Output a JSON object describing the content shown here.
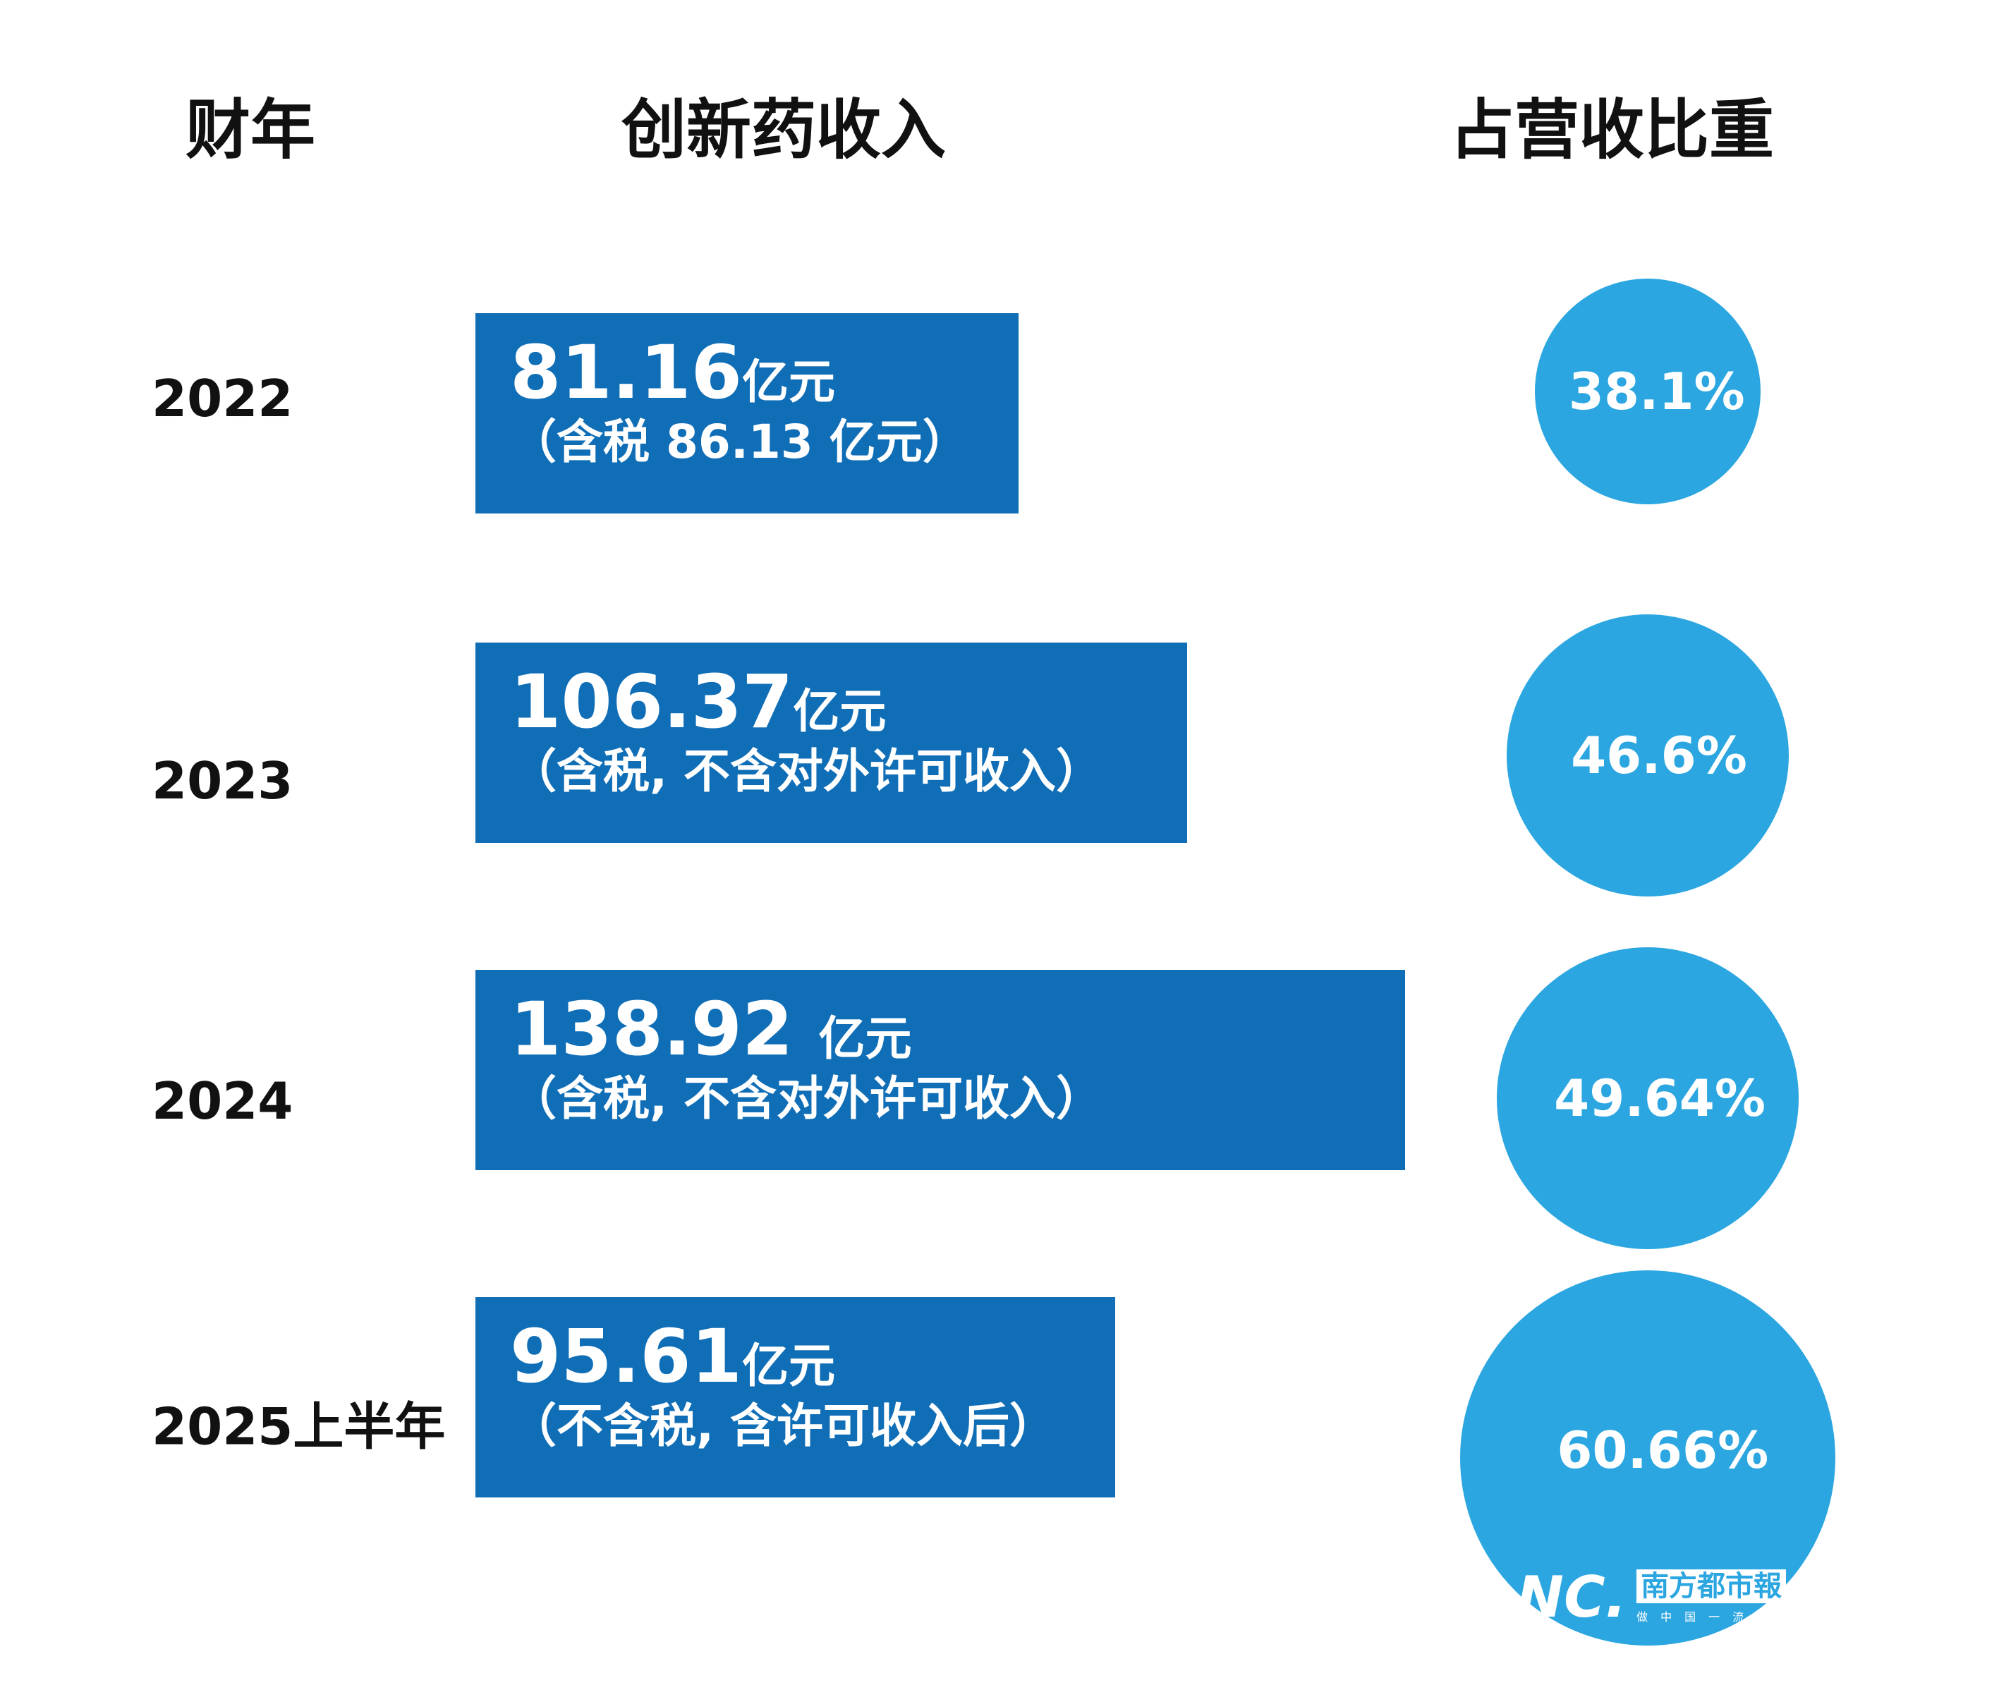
{
  "headers": {
    "year": "财年",
    "revenue": "创新药收入",
    "share": "占营收比重"
  },
  "colors": {
    "bar": "#106EB7",
    "circle": "#2CA6E0"
  },
  "chart_data": {
    "type": "bar",
    "categories": [
      "2022",
      "2023",
      "2024",
      "2025上半年"
    ],
    "series": [
      {
        "name": "创新药收入",
        "values": [
          81.16,
          106.37,
          138.92,
          95.61
        ],
        "unit": "亿元"
      },
      {
        "name": "占营收比重",
        "values": [
          38.1,
          46.6,
          49.64,
          60.66
        ],
        "unit": "%"
      }
    ]
  },
  "rows": [
    {
      "year": "2022",
      "amount": "81.16",
      "unit": "亿元",
      "note": "（含税 86.13 亿元）",
      "share": "38.1%"
    },
    {
      "year": "2023",
      "amount": "106.37",
      "unit": "亿元",
      "note": "（含税, 不含对外许可收入）",
      "share": "46.6%"
    },
    {
      "year": "2024",
      "amount": "138.92 ",
      "unit": "亿元",
      "note": "（含税, 不含对外许可收入）",
      "share": "49.64%"
    },
    {
      "year": "2025上半年",
      "amount": "95.61",
      "unit": "亿元",
      "note": "（不含税, 含许可收入后）",
      "share": "60.66%"
    }
  ],
  "logo": {
    "mark": "NC.",
    "name": "南方都市報",
    "slogan": "做中国一流"
  }
}
